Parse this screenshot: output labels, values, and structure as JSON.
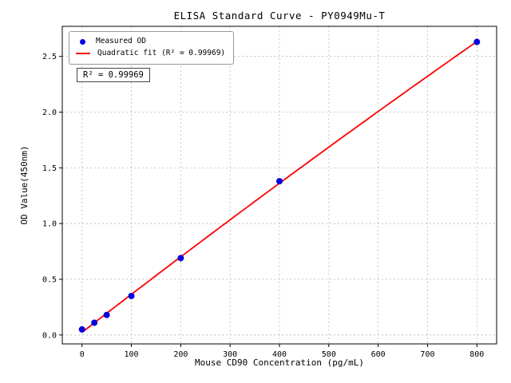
{
  "chart_data": {
    "type": "scatter",
    "title": "ELISA Standard Curve - PY0949Mu-T",
    "xlabel": "Mouse CD90 Concentration (pg/mL)",
    "ylabel": "OD Value(450nm)",
    "xlim": [
      -40,
      840
    ],
    "ylim": [
      -0.08,
      2.77
    ],
    "xticks": [
      0,
      100,
      200,
      300,
      400,
      500,
      600,
      700,
      800
    ],
    "yticks": [
      0.0,
      0.5,
      1.0,
      1.5,
      2.0,
      2.5
    ],
    "grid": true,
    "points": {
      "x": [
        0,
        25,
        50,
        100,
        200,
        400,
        800
      ],
      "y": [
        0.05,
        0.11,
        0.18,
        0.35,
        0.69,
        1.38,
        2.63
      ]
    },
    "fit": {
      "kind": "quadratic",
      "r_squared": "0.99969"
    },
    "legend": [
      {
        "label": "Measured OD",
        "marker": "dot"
      },
      {
        "label": "Quadratic fit (R² = 0.99969)",
        "marker": "line"
      }
    ],
    "annotation": "R² = 0.99969",
    "legend_position": "upper left",
    "colors": {
      "points": "#0000e0",
      "line": "#ff0000",
      "grid": "#b8b8b8",
      "axis": "#000000"
    }
  }
}
